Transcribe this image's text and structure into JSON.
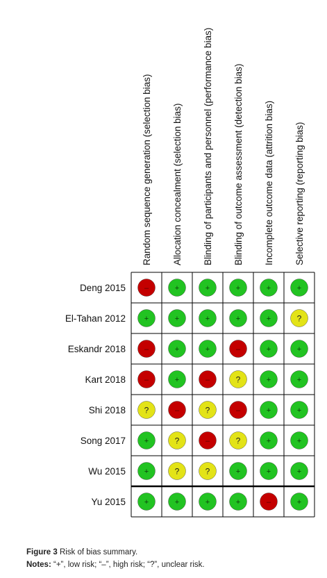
{
  "colors": {
    "low": "#22c322",
    "high": "#c40000",
    "unclear": "#e3e317",
    "grid": "#000000"
  },
  "domains": [
    "Random sequence generation (selection bias)",
    "Allocation concealment (selection bias)",
    "Blinding of participants and personnel (performance bias)",
    "Blinding of outcome assessment (detection bias)",
    "Incomplete outcome data (attrition bias)",
    "Selective reporting (reporting bias)"
  ],
  "studies": [
    {
      "name": "Deng 2015",
      "ratings": [
        "-",
        "+",
        "+",
        "+",
        "+",
        "+"
      ]
    },
    {
      "name": "El-Tahan 2012",
      "ratings": [
        "+",
        "+",
        "+",
        "+",
        "+",
        "?"
      ]
    },
    {
      "name": "Eskandr 2018",
      "ratings": [
        "-",
        "+",
        "+",
        "-",
        "+",
        "+"
      ]
    },
    {
      "name": "Kart 2018",
      "ratings": [
        "-",
        "+",
        "-",
        "?",
        "+",
        "+"
      ]
    },
    {
      "name": "Shi 2018",
      "ratings": [
        "?",
        "-",
        "?",
        "-",
        "+",
        "+"
      ]
    },
    {
      "name": "Song 2017",
      "ratings": [
        "+",
        "?",
        "-",
        "?",
        "+",
        "+"
      ]
    },
    {
      "name": "Wu 2015",
      "ratings": [
        "+",
        "?",
        "?",
        "+",
        "+",
        "+"
      ]
    },
    {
      "name": "Yu 2015",
      "ratings": [
        "+",
        "+",
        "+",
        "+",
        "-",
        "+"
      ]
    }
  ],
  "caption": {
    "label": "Figure 3",
    "text": "Risk of bias summary.",
    "notes_label": "Notes:",
    "notes_text": "“+”, low risk; “–”, high risk; “?”, unclear risk."
  }
}
